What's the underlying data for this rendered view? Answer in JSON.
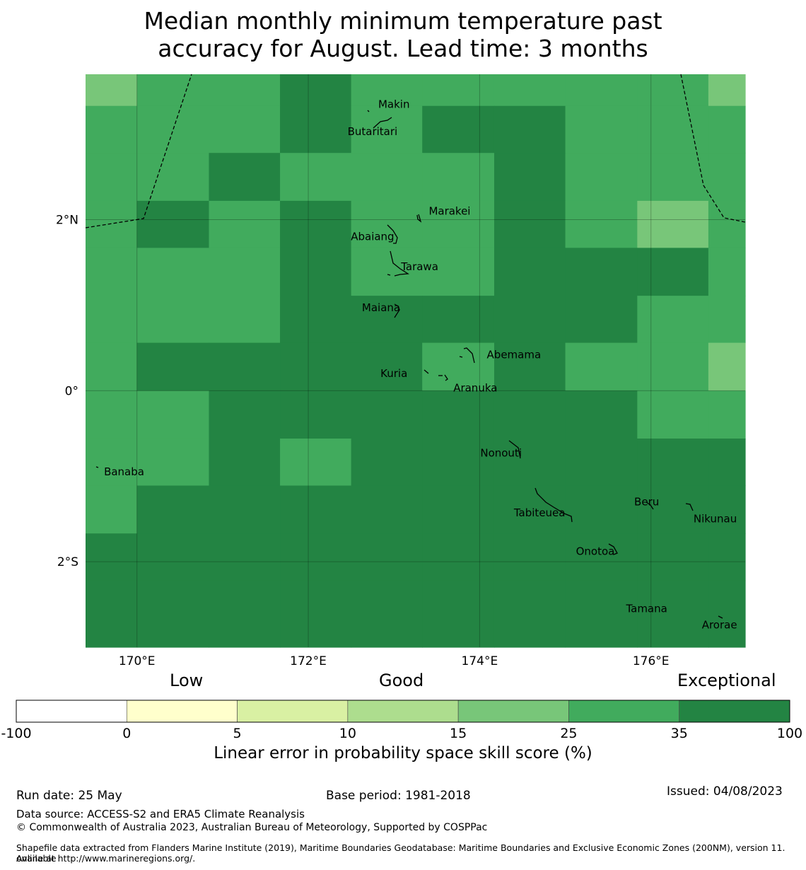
{
  "title_line1": "Median monthly minimum temperature past",
  "title_line2": "accuracy for August. Lead time: 3 months",
  "map": {
    "lon_range": [
      169.4,
      177.1
    ],
    "lat_range": [
      -3.0,
      3.7
    ],
    "lon_ticks": [
      {
        "value": 170,
        "label": "170°E"
      },
      {
        "value": 172,
        "label": "172°E"
      },
      {
        "value": 174,
        "label": "174°E"
      },
      {
        "value": 176,
        "label": "176°E"
      }
    ],
    "lat_ticks": [
      {
        "value": 2,
        "label": "2°N"
      },
      {
        "value": 0,
        "label": "0°"
      },
      {
        "value": -2,
        "label": "2°S"
      }
    ],
    "cell_rows": [
      [
        4,
        5,
        5,
        6,
        5,
        5,
        5,
        5,
        5,
        4
      ],
      [
        5,
        5,
        5,
        6,
        5,
        6,
        6,
        5,
        5,
        5
      ],
      [
        5,
        5,
        6,
        5,
        5,
        5,
        6,
        5,
        5,
        5
      ],
      [
        5,
        6,
        5,
        6,
        5,
        5,
        6,
        5,
        4,
        5
      ],
      [
        5,
        5,
        5,
        6,
        5,
        5,
        6,
        6,
        6,
        5
      ],
      [
        5,
        5,
        5,
        6,
        6,
        6,
        6,
        6,
        5,
        5
      ],
      [
        5,
        6,
        6,
        6,
        6,
        5,
        6,
        5,
        5,
        4
      ],
      [
        5,
        5,
        6,
        6,
        6,
        6,
        6,
        6,
        5,
        5
      ],
      [
        5,
        5,
        6,
        5,
        6,
        6,
        6,
        6,
        6,
        6
      ],
      [
        5,
        6,
        6,
        6,
        6,
        6,
        6,
        6,
        6,
        6
      ],
      [
        6,
        6,
        6,
        6,
        6,
        6,
        6,
        6,
        6,
        6
      ],
      [
        6,
        6,
        6,
        6,
        6,
        6,
        6,
        6,
        6,
        6
      ]
    ],
    "places": [
      {
        "name": "Makin",
        "lon": 173.0,
        "lat": 3.35
      },
      {
        "name": "Butaritari",
        "lon": 172.75,
        "lat": 3.03
      },
      {
        "name": "Marakei",
        "lon": 173.65,
        "lat": 2.1
      },
      {
        "name": "Abaiang",
        "lon": 172.75,
        "lat": 1.8
      },
      {
        "name": "Tarawa",
        "lon": 173.3,
        "lat": 1.45
      },
      {
        "name": "Maiana",
        "lon": 172.85,
        "lat": 0.97
      },
      {
        "name": "Abemama",
        "lon": 174.4,
        "lat": 0.42
      },
      {
        "name": "Kuria",
        "lon": 173.0,
        "lat": 0.2
      },
      {
        "name": "Aranuka",
        "lon": 173.95,
        "lat": 0.03
      },
      {
        "name": "Nonouti",
        "lon": 174.25,
        "lat": -0.73
      },
      {
        "name": "Banaba",
        "lon": 169.85,
        "lat": -0.95
      },
      {
        "name": "Beru",
        "lon": 175.95,
        "lat": -1.3
      },
      {
        "name": "Tabiteuea",
        "lon": 174.7,
        "lat": -1.43
      },
      {
        "name": "Nikunau",
        "lon": 176.75,
        "lat": -1.5
      },
      {
        "name": "Onotoa",
        "lon": 175.35,
        "lat": -1.88
      },
      {
        "name": "Tamana",
        "lon": 175.95,
        "lat": -2.55
      },
      {
        "name": "Arorae",
        "lon": 176.8,
        "lat": -2.74
      }
    ]
  },
  "legend": {
    "low_label": "Low",
    "good_label": "Good",
    "exceptional_label": "Exceptional",
    "colors": [
      "#ffffff",
      "#ffffcc",
      "#d9f0a3",
      "#addd8e",
      "#78c679",
      "#41ab5d",
      "#238443"
    ],
    "bounds": [
      "-100",
      "0",
      "5",
      "10",
      "15",
      "25",
      "35",
      "100"
    ],
    "title": "Linear error in probability space skill score (%)"
  },
  "footer": {
    "run_date": "Run date: 25 May",
    "base_period": "Base period: 1981-2018",
    "issued": "Issued: 04/08/2023",
    "data_source": "Data source: ACCESS-S2 and ERA5 Climate Reanalysis",
    "copyright": "© Commonwealth of Australia 2023, Australian Bureau of Meteorology, Supported by COSPPac",
    "shapefile_line1": "Shapefile data extracted from Flanders Marine Institute (2019), Maritime Boundaries Geodatabase: Maritime Boundaries and Exclusive Economic Zones (200NM), version 11. Available",
    "shapefile_line2": "online at http://www.marineregions.org/."
  }
}
